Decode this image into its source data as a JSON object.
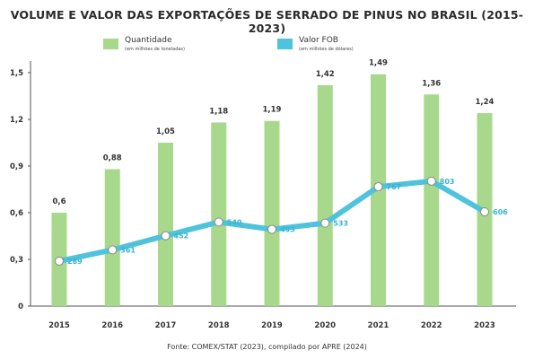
{
  "chart_data": {
    "type": "bar",
    "title": "VOLUME E VALOR DAS EXPORTAÇÕES DE SERRADO DE PINUS NO BRASIL (2015-2023)",
    "categories": [
      "2015",
      "2016",
      "2017",
      "2018",
      "2019",
      "2020",
      "2021",
      "2022",
      "2023"
    ],
    "series": [
      {
        "name": "Quantidade",
        "sublabel": "(em milhões de toneladas)",
        "type": "bar",
        "values": [
          0.6,
          0.88,
          1.05,
          1.18,
          1.19,
          1.42,
          1.49,
          1.36,
          1.24
        ],
        "labels": [
          "0,6",
          "0,88",
          "1,05",
          "1,18",
          "1,19",
          "1,42",
          "1,49",
          "1,36",
          "1,24"
        ],
        "color": "#a8d88c"
      },
      {
        "name": "Valor FOB",
        "sublabel": "(em milhões de dólares)",
        "type": "line",
        "values": [
          289,
          361,
          452,
          540,
          493,
          533,
          767,
          803,
          606
        ],
        "labels": [
          "289",
          "361",
          "452",
          "540",
          "493",
          "533",
          "767",
          "803",
          "606"
        ],
        "color": "#4fc3dc"
      }
    ],
    "y_ticks": [
      "0",
      "0,3",
      "0,6",
      "0,9",
      "1,2",
      "1,5"
    ],
    "y_tick_values": [
      0,
      0.3,
      0.6,
      0.9,
      1.2,
      1.5
    ],
    "ylim": [
      0,
      1.5
    ],
    "line_ylim": [
      0,
      1500
    ],
    "grid": false,
    "legend_position": "top",
    "source": "Fonte: COMEX/STAT (2023), compilado por APRE (2024)"
  }
}
